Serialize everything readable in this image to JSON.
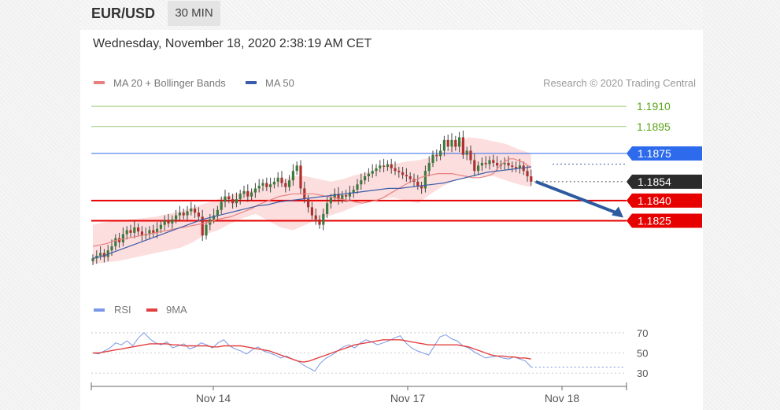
{
  "header": {
    "symbol": "EUR/USD",
    "timeframe": "30 MIN"
  },
  "timestamp": "Wednesday, November 18, 2020 2:38:19 AM CET",
  "legend": {
    "bb_label": "MA 20 + Bollinger Bands",
    "ma50_label": "MA 50",
    "research": "Research © 2020 Trading Central",
    "rsi_label": "RSI",
    "ma9_label": "9MA"
  },
  "colors": {
    "target": "#5aa619",
    "pivot": "#2e6bec",
    "current": "#2b2b2b",
    "support": "#e60000",
    "band": "#fbd3d3",
    "ma20": "#e88080",
    "ma50": "#3a5da8",
    "rsi": "#7b97e8",
    "rsi_ma": "#e34040",
    "arrow": "#2e5ba0"
  },
  "chart_data": [
    {
      "type": "candlestick",
      "ylim": [
        1.1775,
        1.192
      ],
      "x_ticks": [
        "Nov 14",
        "Nov 17",
        "Nov 18"
      ],
      "levels": [
        {
          "value": 1.191,
          "label": "1.1910",
          "role": "target"
        },
        {
          "value": 1.1895,
          "label": "1.1895",
          "role": "target"
        },
        {
          "value": 1.1875,
          "label": "1.1875",
          "role": "pivot"
        },
        {
          "value": 1.1854,
          "label": "1.1854",
          "role": "current"
        },
        {
          "value": 1.184,
          "label": "1.1840",
          "role": "support"
        },
        {
          "value": 1.1825,
          "label": "1.1825",
          "role": "support"
        }
      ],
      "close": [
        1.1797,
        1.1799,
        1.1801,
        1.1798,
        1.1803,
        1.1806,
        1.1812,
        1.1809,
        1.1815,
        1.1818,
        1.1816,
        1.182,
        1.1817,
        1.1814,
        1.1815,
        1.1818,
        1.1816,
        1.1819,
        1.1822,
        1.1825,
        1.1823,
        1.1826,
        1.1829,
        1.1831,
        1.1829,
        1.1832,
        1.1834,
        1.1831,
        1.1828,
        1.1814,
        1.1822,
        1.1826,
        1.1829,
        1.1833,
        1.1839,
        1.1843,
        1.1841,
        1.1838,
        1.1841,
        1.1845,
        1.1847,
        1.1843,
        1.1846,
        1.1849,
        1.1851,
        1.1853,
        1.185,
        1.1852,
        1.1854,
        1.1857,
        1.1853,
        1.185,
        1.1855,
        1.1862,
        1.1866,
        1.1849,
        1.1841,
        1.1835,
        1.1829,
        1.1826,
        1.1822,
        1.183,
        1.1838,
        1.1842,
        1.1845,
        1.1841,
        1.1844,
        1.1843,
        1.1846,
        1.1848,
        1.1852,
        1.1855,
        1.1858,
        1.186,
        1.1862,
        1.1864,
        1.1866,
        1.1865,
        1.1867,
        1.1864,
        1.1862,
        1.1861,
        1.1859,
        1.1858,
        1.1856,
        1.1854,
        1.1851,
        1.1849,
        1.1862,
        1.1868,
        1.1874,
        1.1873,
        1.1877,
        1.1885,
        1.188,
        1.1885,
        1.188,
        1.1887,
        1.1874,
        1.1877,
        1.187,
        1.1862,
        1.1866,
        1.1868,
        1.1867,
        1.187,
        1.1868,
        1.1866,
        1.1867,
        1.1868,
        1.1866,
        1.1865,
        1.1864,
        1.1866,
        1.1862,
        1.1858,
        1.1854
      ],
      "ma20": [
        1.1806,
        1.1807,
        1.1808,
        1.181,
        1.1811,
        1.1812,
        1.1813,
        1.1814,
        1.1815,
        1.1816,
        1.1817,
        1.1818,
        1.1819,
        1.182,
        1.1821,
        1.1822,
        1.1823,
        1.1824,
        1.1826,
        1.1827,
        1.1828,
        1.183,
        1.1832,
        1.1834,
        1.1837,
        1.1839,
        1.1841,
        1.1843,
        1.1844,
        1.1845,
        1.1845,
        1.1845,
        1.1845,
        1.1844,
        1.1843,
        1.1842,
        1.1841,
        1.184,
        1.1839,
        1.1838,
        1.1839,
        1.184,
        1.1842,
        1.1845,
        1.1848,
        1.1851,
        1.1854,
        1.1856,
        1.1858,
        1.1859,
        1.186,
        1.186,
        1.186,
        1.1859,
        1.1858,
        1.1857,
        1.1857,
        1.1858,
        1.186,
        1.1863,
        1.1866,
        1.1868,
        1.187,
        1.1871,
        1.1871,
        1.187,
        1.1869,
        1.1868,
        1.1866,
        1.1865
      ],
      "ma20_x": [
        0,
        2,
        4,
        6,
        8,
        10,
        12,
        14,
        16,
        18,
        20,
        22,
        24,
        26,
        28,
        30,
        32,
        34,
        36,
        38,
        40,
        42,
        44,
        46,
        48,
        50,
        52,
        54,
        56,
        58,
        60,
        62,
        64,
        66,
        68,
        70,
        72,
        74,
        76,
        78,
        80,
        82,
        84,
        86,
        88,
        90,
        92,
        94,
        96,
        98,
        100,
        102,
        104,
        106,
        108,
        110,
        112,
        114,
        116,
        117,
        118,
        119,
        120,
        121,
        122,
        123,
        124,
        125,
        126,
        127
      ],
      "ma50": [
        1.1797,
        1.1799,
        1.1802,
        1.1805,
        1.1808,
        1.1811,
        1.1814,
        1.1817,
        1.182,
        1.1823,
        1.1826,
        1.1828,
        1.183,
        1.1832,
        1.1834,
        1.1836,
        1.1837,
        1.1839,
        1.184,
        1.1841,
        1.1842,
        1.1843,
        1.1844,
        1.1845,
        1.1846,
        1.1847,
        1.1848,
        1.1849,
        1.1849,
        1.185,
        1.1851,
        1.1852,
        1.1853,
        1.1855,
        1.1857,
        1.1859,
        1.1861,
        1.1862,
        1.1863,
        1.1864,
        1.1865
      ],
      "bb_upper": [
        1.1822,
        1.1824,
        1.1825,
        1.1826,
        1.1827,
        1.1828,
        1.183,
        1.1832,
        1.1835,
        1.1838,
        1.1841,
        1.1844,
        1.1846,
        1.1848,
        1.1852,
        1.1855,
        1.1858,
        1.1858,
        1.1856,
        1.1854,
        1.1856,
        1.1859,
        1.1861,
        1.1864,
        1.1867,
        1.1869,
        1.187,
        1.1872,
        1.1876,
        1.1882,
        1.1887,
        1.1886,
        1.1884,
        1.1882,
        1.1878,
        1.1875
      ],
      "bb_lower": [
        1.1793,
        1.1794,
        1.1795,
        1.1797,
        1.1799,
        1.1801,
        1.1803,
        1.1805,
        1.1809,
        1.1815,
        1.1818,
        1.1823,
        1.1827,
        1.183,
        1.1825,
        1.182,
        1.1818,
        1.1822,
        1.1826,
        1.1829,
        1.1832,
        1.1836,
        1.1839,
        1.1841,
        1.1842,
        1.184,
        1.1838,
        1.1845,
        1.1851,
        1.1855,
        1.1857,
        1.1858,
        1.1858,
        1.1855,
        1.1852,
        1.185
      ],
      "projection": {
        "from": 1.1854,
        "to": 1.1825
      }
    },
    {
      "type": "line",
      "ylim": [
        20,
        80
      ],
      "y_ticks": [
        "70",
        "50",
        "30"
      ],
      "series": [
        {
          "name": "RSI",
          "values": [
            50,
            49,
            52,
            55,
            60,
            58,
            62,
            57,
            65,
            70,
            64,
            60,
            58,
            61,
            55,
            57,
            59,
            54,
            56,
            60,
            58,
            55,
            60,
            63,
            57,
            54,
            52,
            49,
            53,
            56,
            52,
            50,
            48,
            45,
            47,
            44,
            42,
            38,
            35,
            32,
            40,
            45,
            48,
            52,
            56,
            58,
            55,
            60,
            63,
            61,
            58,
            60,
            62,
            65,
            67,
            60,
            55,
            52,
            50,
            48,
            57,
            66,
            68,
            64,
            62,
            57,
            55,
            51,
            48,
            45,
            46,
            47,
            45,
            44,
            46,
            44,
            42,
            36
          ]
        },
        {
          "name": "9MA",
          "values": [
            50,
            50,
            51,
            52,
            53,
            54,
            55,
            56,
            57,
            58,
            59,
            59,
            59,
            59,
            58,
            58,
            57,
            57,
            57,
            57,
            57,
            56,
            56,
            57,
            57,
            57,
            57,
            56,
            55,
            54,
            53,
            52,
            50,
            48,
            46,
            44,
            42,
            41,
            42,
            44,
            46,
            48,
            50,
            52,
            54,
            56,
            58,
            59,
            60,
            61,
            62,
            63,
            63,
            63,
            63,
            62,
            61,
            60,
            59,
            58,
            58,
            58,
            58,
            58,
            58,
            57,
            56,
            54,
            52,
            50,
            48,
            47,
            47,
            46,
            46,
            45,
            45,
            44
          ]
        }
      ]
    }
  ]
}
